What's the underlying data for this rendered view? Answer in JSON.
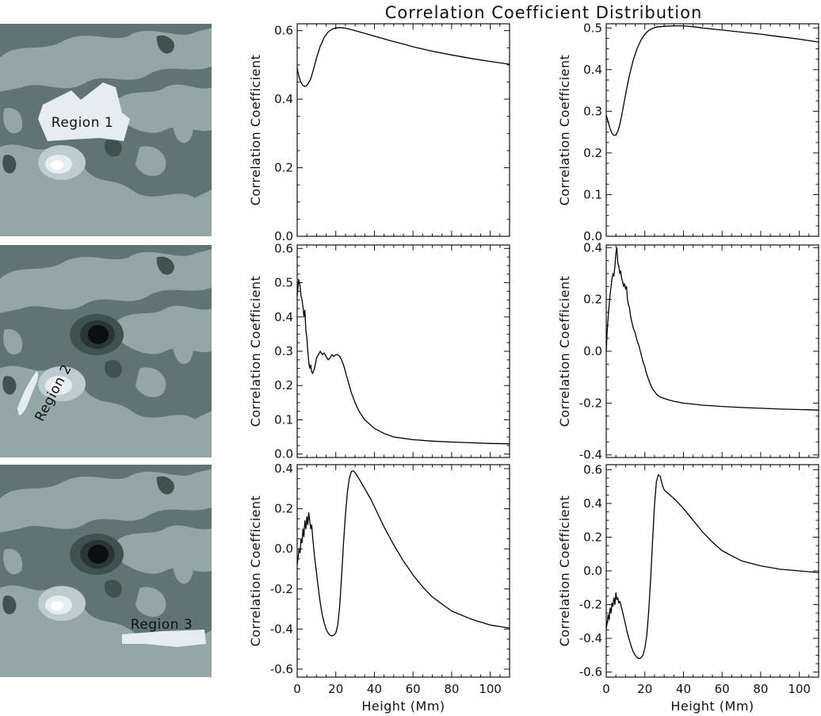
{
  "title": "Correlation Coefficient Distribution",
  "colors": {
    "map_bg": "#5f7473",
    "map_light": "#95a6a6",
    "map_lighter": "#bfcccd",
    "map_lightest": "#e6edf0",
    "map_dark": "#40524f",
    "map_darkest": "#0c0f0f",
    "line": "#000000"
  },
  "maps": [
    {
      "label": "Region 1",
      "has_spot": false
    },
    {
      "label": "Region 2",
      "has_spot": true
    },
    {
      "label": "Region 3",
      "has_spot": true
    }
  ],
  "chart_data": [
    {
      "type": "line",
      "row": 1,
      "col": 1,
      "xlabel": "",
      "ylabel": "Correlation Coefficient",
      "xlim": [
        0,
        110
      ],
      "ylim": [
        0,
        0.62
      ],
      "yticks": [
        0.0,
        0.2,
        0.4,
        0.6
      ],
      "ytick_labels": [
        "0.0",
        "0.2",
        "0.4",
        "0.6"
      ],
      "xticks": [
        0,
        20,
        40,
        60,
        80,
        100
      ],
      "xtick_labels": [],
      "x": [
        0,
        1,
        2,
        3,
        4,
        5,
        6,
        7,
        8,
        10,
        12,
        14,
        16,
        18,
        20,
        22,
        24,
        26,
        30,
        35,
        40,
        45,
        50,
        55,
        60,
        70,
        80,
        90,
        100,
        110
      ],
      "y": [
        0.49,
        0.465,
        0.448,
        0.44,
        0.437,
        0.44,
        0.448,
        0.46,
        0.478,
        0.52,
        0.555,
        0.58,
        0.596,
        0.604,
        0.608,
        0.609,
        0.608,
        0.606,
        0.6,
        0.592,
        0.584,
        0.576,
        0.568,
        0.561,
        0.553,
        0.54,
        0.529,
        0.519,
        0.51,
        0.502
      ]
    },
    {
      "type": "line",
      "row": 1,
      "col": 2,
      "xlabel": "",
      "ylabel": "Correlation Coefficient",
      "xlim": [
        0,
        110
      ],
      "ylim": [
        0,
        0.51
      ],
      "yticks": [
        0.0,
        0.1,
        0.2,
        0.3,
        0.4,
        0.5
      ],
      "ytick_labels": [
        "0.0",
        "0.1",
        "0.2",
        "0.3",
        "0.4",
        "0.5"
      ],
      "xticks": [
        0,
        20,
        40,
        60,
        80,
        100
      ],
      "xtick_labels": [],
      "x": [
        0,
        1,
        2,
        3,
        4,
        5,
        6,
        7,
        8,
        10,
        12,
        14,
        16,
        18,
        20,
        22,
        24,
        26,
        28,
        30,
        35,
        40,
        45,
        50,
        60,
        70,
        80,
        90,
        100,
        110
      ],
      "y": [
        0.29,
        0.275,
        0.258,
        0.247,
        0.242,
        0.243,
        0.252,
        0.268,
        0.29,
        0.34,
        0.386,
        0.423,
        0.451,
        0.471,
        0.485,
        0.494,
        0.499,
        0.502,
        0.503,
        0.504,
        0.505,
        0.505,
        0.503,
        0.5,
        0.495,
        0.49,
        0.485,
        0.479,
        0.473,
        0.466
      ]
    },
    {
      "type": "line",
      "row": 2,
      "col": 1,
      "xlabel": "",
      "ylabel": "Correlation Coefficient",
      "xlim": [
        0,
        110
      ],
      "ylim": [
        -0.01,
        0.61
      ],
      "yticks": [
        0.0,
        0.1,
        0.2,
        0.3,
        0.4,
        0.5,
        0.6
      ],
      "ytick_labels": [
        "0.0",
        "0.1",
        "0.2",
        "0.3",
        "0.4",
        "0.5",
        "0.6"
      ],
      "xticks": [
        0,
        20,
        40,
        60,
        80,
        100
      ],
      "xtick_labels": [],
      "x": [
        0,
        0.8,
        1.5,
        2,
        2.5,
        3,
        3.5,
        4,
        4.5,
        5,
        5.5,
        6,
        6.5,
        7,
        7.5,
        8,
        9,
        10,
        11,
        12,
        13,
        14,
        15,
        16,
        17,
        18,
        19,
        20,
        21,
        22,
        23,
        24,
        25,
        26,
        28,
        30,
        32,
        35,
        40,
        45,
        50,
        60,
        70,
        80,
        90,
        100,
        110
      ],
      "y": [
        0.46,
        0.51,
        0.49,
        0.46,
        0.45,
        0.43,
        0.4,
        0.42,
        0.36,
        0.34,
        0.3,
        0.27,
        0.25,
        0.26,
        0.24,
        0.235,
        0.25,
        0.28,
        0.29,
        0.3,
        0.29,
        0.295,
        0.285,
        0.275,
        0.28,
        0.29,
        0.285,
        0.29,
        0.29,
        0.285,
        0.275,
        0.26,
        0.24,
        0.22,
        0.18,
        0.15,
        0.125,
        0.1,
        0.075,
        0.06,
        0.05,
        0.042,
        0.038,
        0.035,
        0.033,
        0.031,
        0.03
      ]
    },
    {
      "type": "line",
      "row": 2,
      "col": 2,
      "xlabel": "",
      "ylabel": "Correlation Coefficient",
      "xlim": [
        0,
        110
      ],
      "ylim": [
        -0.41,
        0.41
      ],
      "yticks": [
        -0.4,
        -0.2,
        0.0,
        0.2,
        0.4
      ],
      "ytick_labels": [
        "-0.4",
        "-0.2",
        "0.0",
        "0.2",
        "0.4"
      ],
      "xticks": [
        0,
        20,
        40,
        60,
        80,
        100
      ],
      "xtick_labels": [],
      "x": [
        0,
        0.5,
        1,
        1.5,
        2,
        2.5,
        3,
        3.5,
        4,
        4.5,
        5,
        5.5,
        6,
        6.5,
        7,
        7.5,
        8,
        8.5,
        9,
        9.5,
        10,
        10.5,
        11,
        11.5,
        12,
        12.5,
        13,
        14,
        15,
        16,
        17,
        18,
        19,
        20,
        21,
        22,
        23,
        24,
        25,
        26,
        27,
        28,
        30,
        32,
        35,
        40,
        50,
        60,
        70,
        80,
        90,
        100,
        110
      ],
      "y": [
        0.0,
        0.08,
        0.13,
        0.18,
        0.22,
        0.25,
        0.28,
        0.3,
        0.29,
        0.33,
        0.38,
        0.4,
        0.34,
        0.33,
        0.3,
        0.31,
        0.28,
        0.27,
        0.25,
        0.26,
        0.24,
        0.25,
        0.2,
        0.18,
        0.17,
        0.14,
        0.12,
        0.09,
        0.07,
        0.04,
        0.02,
        -0.01,
        -0.04,
        -0.06,
        -0.09,
        -0.11,
        -0.13,
        -0.145,
        -0.155,
        -0.165,
        -0.172,
        -0.177,
        -0.182,
        -0.187,
        -0.193,
        -0.2,
        -0.208,
        -0.213,
        -0.217,
        -0.22,
        -0.223,
        -0.225,
        -0.227
      ]
    },
    {
      "type": "line",
      "row": 3,
      "col": 1,
      "xlabel": "Height (Mm)",
      "ylabel": "Correlation Coefficient",
      "xlim": [
        0,
        110
      ],
      "ylim": [
        -0.64,
        0.42
      ],
      "yticks": [
        -0.6,
        -0.4,
        -0.2,
        0.0,
        0.2,
        0.4
      ],
      "ytick_labels": [
        "-0.6",
        "-0.4",
        "-0.2",
        "0.0",
        "0.2",
        "0.4"
      ],
      "xticks": [
        0,
        20,
        40,
        60,
        80,
        100
      ],
      "xtick_labels": [
        "0",
        "20",
        "40",
        "60",
        "80",
        "100"
      ],
      "x": [
        0,
        0.5,
        1,
        1.5,
        2,
        2.5,
        3,
        3.5,
        4,
        4.5,
        5,
        5.5,
        6,
        6.5,
        7,
        7.5,
        8,
        9,
        10,
        11,
        12,
        13,
        14,
        15,
        16,
        17,
        18,
        19,
        20,
        21,
        22,
        23,
        24,
        25,
        26,
        27,
        28,
        29,
        30,
        32,
        35,
        38,
        40,
        45,
        50,
        55,
        60,
        65,
        70,
        80,
        90,
        100,
        110
      ],
      "y": [
        -0.08,
        -0.04,
        0.0,
        -0.02,
        0.05,
        0.03,
        0.1,
        0.06,
        0.14,
        0.1,
        0.16,
        0.12,
        0.18,
        0.14,
        0.1,
        0.12,
        0.06,
        -0.04,
        -0.12,
        -0.2,
        -0.27,
        -0.33,
        -0.37,
        -0.4,
        -0.42,
        -0.43,
        -0.435,
        -0.43,
        -0.42,
        -0.38,
        -0.29,
        -0.14,
        0.03,
        0.17,
        0.28,
        0.35,
        0.385,
        0.39,
        0.38,
        0.35,
        0.3,
        0.25,
        0.21,
        0.11,
        0.02,
        -0.06,
        -0.13,
        -0.19,
        -0.24,
        -0.31,
        -0.35,
        -0.38,
        -0.395
      ]
    },
    {
      "type": "line",
      "row": 3,
      "col": 2,
      "xlabel": "Height (Mm)",
      "ylabel": "Correlation Coefficient",
      "xlim": [
        0,
        110
      ],
      "ylim": [
        -0.63,
        0.63
      ],
      "yticks": [
        -0.6,
        -0.4,
        -0.2,
        0.0,
        0.2,
        0.4,
        0.6
      ],
      "ytick_labels": [
        "-0.6",
        "-0.4",
        "-0.2",
        "0.0",
        "0.2",
        "0.4",
        "0.6"
      ],
      "xticks": [
        0,
        20,
        40,
        60,
        80,
        100
      ],
      "xtick_labels": [
        "0",
        "20",
        "40",
        "60",
        "80",
        "100"
      ],
      "x": [
        0,
        0.5,
        1,
        1.5,
        2,
        2.5,
        3,
        3.5,
        4,
        4.5,
        5,
        5.5,
        6,
        6.5,
        7,
        7.5,
        8,
        9,
        10,
        11,
        12,
        13,
        14,
        15,
        16,
        17,
        18,
        19,
        20,
        21,
        22,
        23,
        24,
        25,
        26,
        27,
        28,
        29,
        30,
        32,
        35,
        40,
        45,
        50,
        55,
        60,
        65,
        70,
        80,
        90,
        100,
        110
      ],
      "y": [
        -0.34,
        -0.31,
        -0.26,
        -0.29,
        -0.22,
        -0.25,
        -0.19,
        -0.21,
        -0.16,
        -0.2,
        -0.13,
        -0.17,
        -0.16,
        -0.19,
        -0.18,
        -0.2,
        -0.22,
        -0.27,
        -0.32,
        -0.37,
        -0.41,
        -0.45,
        -0.48,
        -0.5,
        -0.515,
        -0.52,
        -0.515,
        -0.5,
        -0.46,
        -0.38,
        -0.24,
        -0.05,
        0.18,
        0.39,
        0.53,
        0.57,
        0.56,
        0.51,
        0.48,
        0.46,
        0.43,
        0.37,
        0.3,
        0.23,
        0.17,
        0.12,
        0.09,
        0.06,
        0.03,
        0.01,
        0.0,
        -0.01
      ]
    }
  ]
}
